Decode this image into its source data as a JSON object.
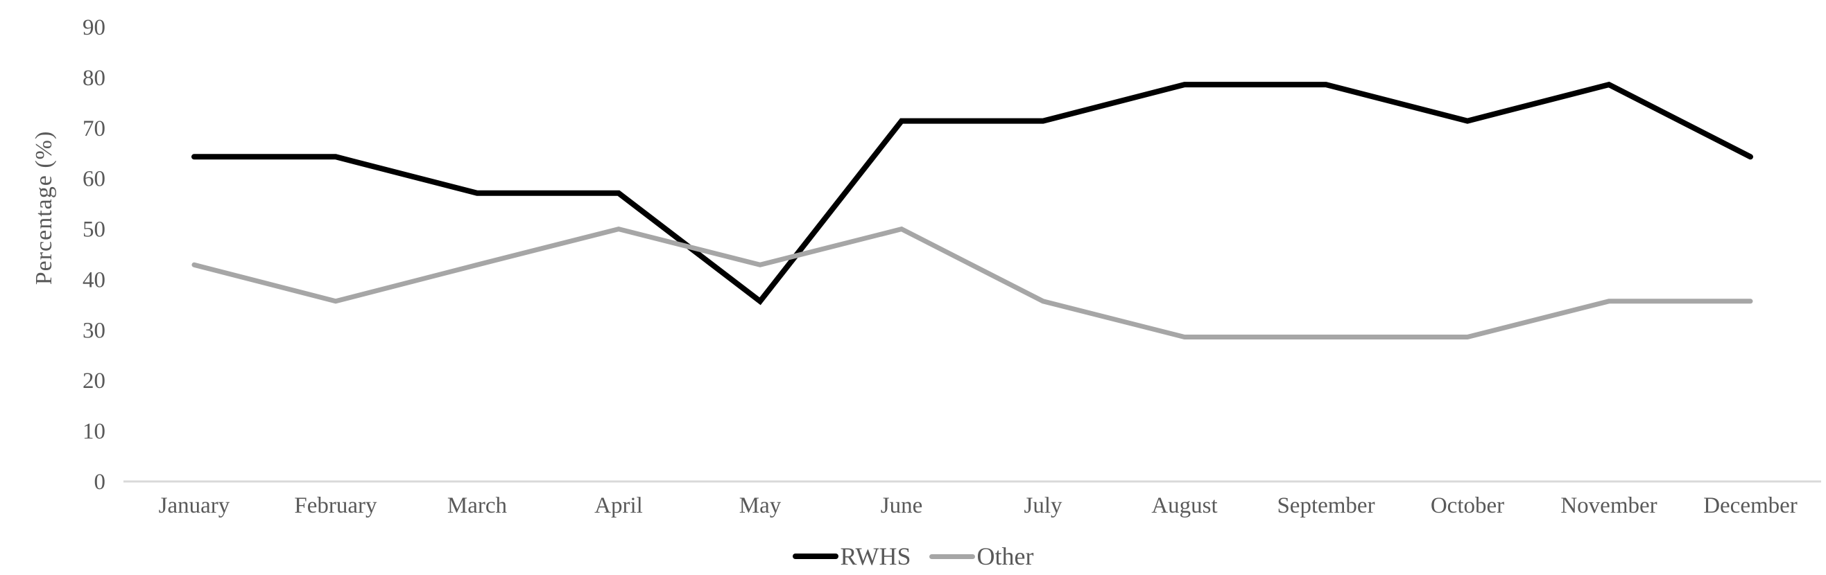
{
  "chart_data": {
    "type": "line",
    "title": "",
    "xlabel": "",
    "ylabel": "Percentage (%)",
    "categories": [
      "January",
      "February",
      "March",
      "April",
      "May",
      "June",
      "July",
      "August",
      "September",
      "October",
      "November",
      "December"
    ],
    "y_ticks": [
      0,
      10,
      20,
      30,
      40,
      50,
      60,
      70,
      80,
      90
    ],
    "ylim": [
      0,
      90
    ],
    "grid": false,
    "legend_position": "bottom-center",
    "series": [
      {
        "name": "RWHS",
        "color": "#000000",
        "values": [
          64.3,
          64.3,
          57.1,
          57.1,
          35.7,
          71.4,
          71.4,
          78.6,
          78.6,
          71.4,
          78.6,
          64.3
        ]
      },
      {
        "name": "Other",
        "color": "#A6A6A6",
        "values": [
          42.9,
          35.7,
          42.9,
          50.0,
          42.9,
          50.0,
          35.7,
          28.6,
          28.6,
          28.6,
          35.7,
          35.7
        ]
      }
    ]
  }
}
